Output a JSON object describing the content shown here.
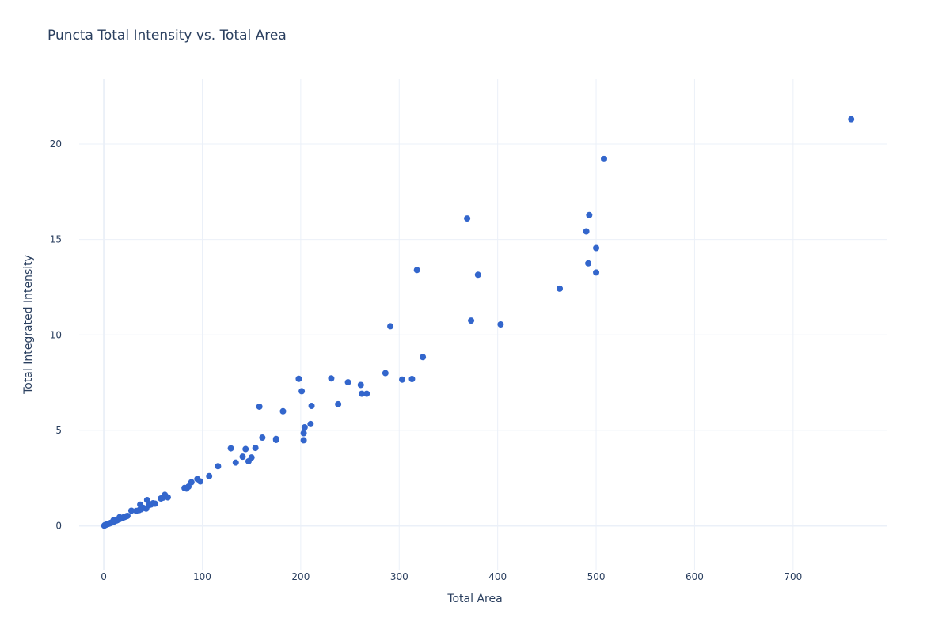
{
  "chart_data": {
    "type": "scatter",
    "title": "Puncta Total Intensity vs. Total Area",
    "xlabel": "Total Area",
    "ylabel": "Total Integrated Intensity",
    "xlim": [
      -25,
      795
    ],
    "ylim": [
      -2.3,
      23.4
    ],
    "x_ticks": [
      0,
      100,
      200,
      300,
      400,
      500,
      600,
      700
    ],
    "y_ticks": [
      0,
      5,
      10,
      15,
      20
    ],
    "grid": true,
    "legend": "none",
    "marker_color": "#3366cc",
    "series": [
      {
        "points": [
          [
            0.5,
            0.01
          ],
          [
            1,
            0.03
          ],
          [
            2,
            0.05
          ],
          [
            3,
            0.07
          ],
          [
            4,
            0.09
          ],
          [
            5,
            0.11
          ],
          [
            6,
            0.13
          ],
          [
            7,
            0.15
          ],
          [
            8,
            0.17
          ],
          [
            9,
            0.19
          ],
          [
            10,
            0.21
          ],
          [
            11,
            0.24
          ],
          [
            12,
            0.27
          ],
          [
            13,
            0.28
          ],
          [
            14,
            0.31
          ],
          [
            15,
            0.33
          ],
          [
            16,
            0.35
          ],
          [
            17,
            0.38
          ],
          [
            18,
            0.4
          ],
          [
            19,
            0.42
          ],
          [
            20,
            0.44
          ],
          [
            21,
            0.46
          ],
          [
            22,
            0.48
          ],
          [
            23,
            0.5
          ],
          [
            24,
            0.52
          ],
          [
            16,
            0.45
          ],
          [
            10,
            0.3
          ],
          [
            28,
            0.79
          ],
          [
            33,
            0.78
          ],
          [
            36,
            0.82
          ],
          [
            37,
            1.11
          ],
          [
            38,
            0.87
          ],
          [
            40,
            0.94
          ],
          [
            43,
            0.9
          ],
          [
            44,
            1.35
          ],
          [
            46,
            1.08
          ],
          [
            48,
            1.12
          ],
          [
            50,
            1.18
          ],
          [
            52,
            1.16
          ],
          [
            58,
            1.43
          ],
          [
            60,
            1.47
          ],
          [
            62,
            1.62
          ],
          [
            65,
            1.49
          ],
          [
            82,
            1.98
          ],
          [
            84,
            1.95
          ],
          [
            86,
            2.05
          ],
          [
            89,
            2.28
          ],
          [
            95,
            2.45
          ],
          [
            98,
            2.32
          ],
          [
            107,
            2.6
          ],
          [
            116,
            3.12
          ],
          [
            129,
            4.06
          ],
          [
            134,
            3.31
          ],
          [
            141,
            3.62
          ],
          [
            144,
            4.02
          ],
          [
            147,
            3.38
          ],
          [
            150,
            3.58
          ],
          [
            154,
            4.08
          ],
          [
            158,
            6.24
          ],
          [
            161,
            4.62
          ],
          [
            175,
            4.5
          ],
          [
            175,
            4.55
          ],
          [
            182,
            6.0
          ],
          [
            198,
            7.7
          ],
          [
            201,
            7.05
          ],
          [
            203,
            4.48
          ],
          [
            203,
            4.85
          ],
          [
            204,
            5.16
          ],
          [
            210,
            5.33
          ],
          [
            211,
            6.28
          ],
          [
            231,
            7.72
          ],
          [
            238,
            6.37
          ],
          [
            248,
            7.52
          ],
          [
            261,
            7.38
          ],
          [
            262,
            6.92
          ],
          [
            267,
            6.92
          ],
          [
            286,
            8.0
          ],
          [
            291,
            10.45
          ],
          [
            303,
            7.66
          ],
          [
            313,
            7.69
          ],
          [
            318,
            13.4
          ],
          [
            324,
            8.84
          ],
          [
            369,
            16.1
          ],
          [
            373,
            10.75
          ],
          [
            380,
            13.15
          ],
          [
            403,
            10.55
          ],
          [
            463,
            12.42
          ],
          [
            490,
            15.42
          ],
          [
            492,
            13.75
          ],
          [
            493,
            16.28
          ],
          [
            500,
            14.55
          ],
          [
            500,
            13.27
          ],
          [
            508,
            19.22
          ],
          [
            759,
            21.3
          ]
        ]
      }
    ]
  }
}
